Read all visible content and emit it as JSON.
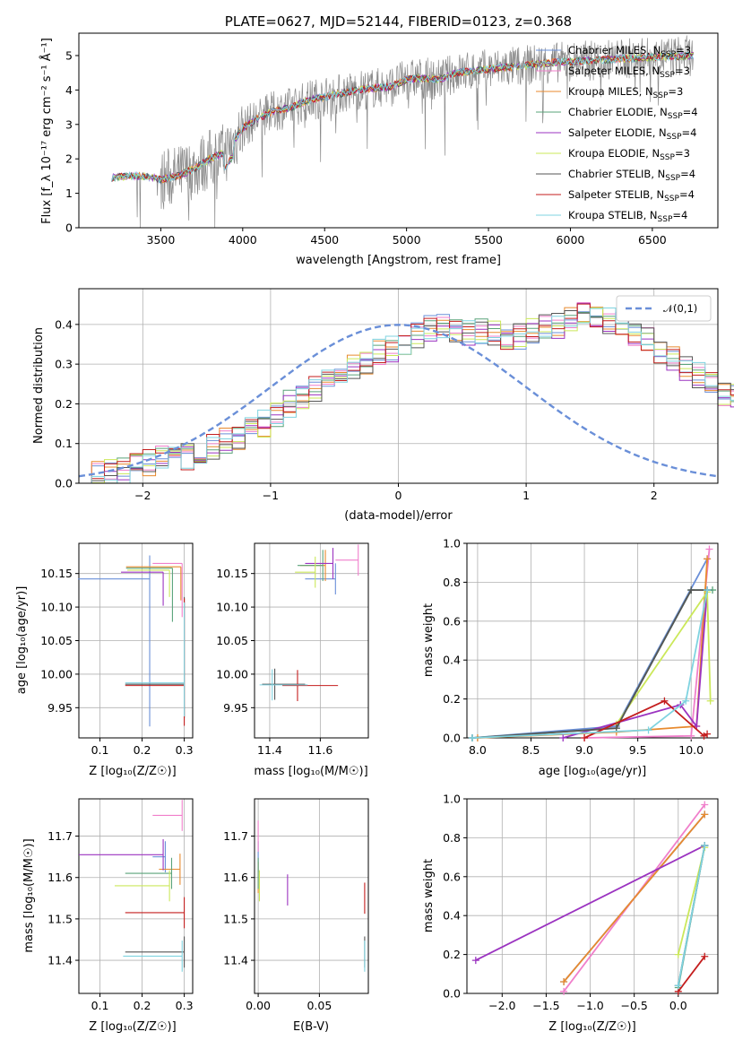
{
  "palette": [
    "#6a8fd8",
    "#f07fcb",
    "#e88a2e",
    "#5aa37a",
    "#9b33c0",
    "#cbe85a",
    "#555555",
    "#c41e1e",
    "#7fd3e0"
  ],
  "top": {
    "title": "PLATE=0627, MJD=52144, FIBERID=0123, z=0.368",
    "xlabel": "wavelength [Angstrom, rest frame]",
    "ylabel": "Flux [f_λ 10⁻¹⁷ erg cm⁻² s⁻¹ Å⁻¹]",
    "xticks": [
      "3500",
      "4000",
      "4500",
      "5000",
      "5500",
      "6000",
      "6500"
    ],
    "yticks": [
      "0",
      "1",
      "2",
      "3",
      "4",
      "5"
    ],
    "legend": [
      "Chabrier MILES, N_SSP=3",
      "Salpeter MILES, N_SSP=3",
      "Kroupa MILES, N_SSP=3",
      "Chabrier ELODIE, N_SSP=4",
      "Salpeter ELODIE, N_SSP=4",
      "Kroupa ELODIE, N_SSP=3",
      "Chabrier STELIB, N_SSP=4",
      "Salpeter STELIB, N_SSP=4",
      "Kroupa STELIB, N_SSP=4"
    ]
  },
  "hist": {
    "xlabel": "(data-model)/error",
    "ylabel": "Normed distribution",
    "xticks": [
      "−2",
      "−1",
      "0",
      "1",
      "2"
    ],
    "yticks": [
      "0.0",
      "0.1",
      "0.2",
      "0.3",
      "0.4"
    ],
    "legend": "𝒩(0,1)"
  },
  "p3": {
    "xlabel": "Z [log₁₀(Z/Z☉)]",
    "ylabel": "age  [log₁₀(age/yr)]",
    "xticks": [
      "0.1",
      "0.2",
      "0.3"
    ],
    "yticks": [
      "9.95",
      "10.00",
      "10.05",
      "10.10",
      "10.15"
    ]
  },
  "p4": {
    "xlabel": "mass [log₁₀(M/M☉)]",
    "xticks": [
      "11.4",
      "11.6"
    ],
    "yticks": [
      "9.95",
      "10.00",
      "10.05",
      "10.10",
      "10.15"
    ]
  },
  "p5": {
    "xlabel": "age  [log₁₀(age/yr)]",
    "ylabel": "mass weight",
    "xticks": [
      "8.0",
      "8.5",
      "9.0",
      "9.5",
      "10.0"
    ],
    "yticks": [
      "0.0",
      "0.2",
      "0.4",
      "0.6",
      "0.8",
      "1.0"
    ]
  },
  "p6": {
    "xlabel": "Z [log₁₀(Z/Z☉)]",
    "ylabel": "mass [log₁₀(M/M☉)]",
    "xticks": [
      "0.1",
      "0.2",
      "0.3"
    ],
    "yticks": [
      "11.4",
      "11.5",
      "11.6",
      "11.7"
    ]
  },
  "p7": {
    "xlabel": "E(B-V)",
    "xticks": [
      "0.00",
      "0.05"
    ],
    "yticks": [
      "11.4",
      "11.5",
      "11.6",
      "11.7"
    ]
  },
  "p8": {
    "xlabel": "Z [log₁₀(Z/Z☉)]",
    "ylabel": "mass weight",
    "xticks": [
      "−2.0",
      "−1.5",
      "−1.0",
      "−0.5",
      "0.0"
    ],
    "yticks": [
      "0.0",
      "0.2",
      "0.4",
      "0.6",
      "0.8",
      "1.0"
    ]
  },
  "chart_data": [
    {
      "type": "line",
      "title": "PLATE=0627, MJD=52144, FIBERID=0123, z=0.368",
      "xlabel": "wavelength [Angstrom, rest frame]",
      "ylabel": "Flux [f_λ 10⁻¹⁷ erg cm⁻² s⁻¹ Å⁻¹]",
      "xlim": [
        3000,
        6900
      ],
      "ylim": [
        0,
        5.65
      ],
      "legend_position": "right",
      "continuum_x": [
        3200,
        3300,
        3400,
        3500,
        3600,
        3700,
        3800,
        3900,
        4000,
        4100,
        4200,
        4300,
        4400,
        4500,
        4700,
        4900,
        5000,
        5100,
        5200,
        5300,
        5500,
        5700,
        5900,
        6100,
        6300,
        6500,
        6750
      ],
      "continuum_y": [
        1.45,
        1.5,
        1.5,
        1.4,
        1.5,
        1.7,
        2.0,
        2.2,
        2.9,
        3.2,
        3.4,
        3.5,
        3.7,
        3.8,
        4.0,
        4.1,
        4.3,
        4.35,
        4.3,
        4.5,
        4.6,
        4.7,
        4.8,
        4.85,
        4.9,
        4.95,
        5.0
      ]
    },
    {
      "type": "bar",
      "xlabel": "(data-model)/error",
      "ylabel": "Normed distribution",
      "xlim": [
        -2.5,
        2.5
      ],
      "ylim": [
        0,
        0.49
      ],
      "grid": true,
      "bin_edges_start": -2.5,
      "bin_width": 0.1,
      "mean_histogram": [
        0.025,
        0.025,
        0.03,
        0.03,
        0.04,
        0.05,
        0.06,
        0.07,
        0.065,
        0.075,
        0.09,
        0.11,
        0.12,
        0.14,
        0.15,
        0.17,
        0.2,
        0.22,
        0.24,
        0.25,
        0.27,
        0.29,
        0.31,
        0.33,
        0.34,
        0.35,
        0.37,
        0.39,
        0.39,
        0.39,
        0.38,
        0.38,
        0.38,
        0.37,
        0.37,
        0.38,
        0.39,
        0.4,
        0.41,
        0.42,
        0.42,
        0.41,
        0.4,
        0.38,
        0.36,
        0.33,
        0.31,
        0.29,
        0.27,
        0.25,
        0.23,
        0.22,
        0.2,
        0.18,
        0.16,
        0.14,
        0.13,
        0.12,
        0.1,
        0.09,
        0.08,
        0.07,
        0.06,
        0.055,
        0.05,
        0.045,
        0.04,
        0.035,
        0.03,
        0.03
      ],
      "gaussian_label": "𝒩(0,1)"
    },
    {
      "type": "scatter",
      "xlabel": "Z [log₁₀(Z/Z☉)]",
      "ylabel": "age  [log₁₀(age/yr)]",
      "xlim": [
        0.05,
        0.32
      ],
      "ylim": [
        9.905,
        10.195
      ],
      "grid": true,
      "series": [
        {
          "x": 0.218,
          "y": 10.142,
          "xerr": [
            0.17,
            0.0
          ],
          "yerr": [
            0.22,
            0.035
          ]
        },
        {
          "x": 0.295,
          "y": 10.165,
          "xerr": [
            0.07,
            0.0
          ],
          "yerr": [
            0.08,
            0.0
          ]
        },
        {
          "x": 0.292,
          "y": 10.16,
          "xerr": [
            0.13,
            0.0
          ],
          "yerr": [
            0.05,
            0.0
          ]
        },
        {
          "x": 0.272,
          "y": 10.158,
          "xerr": [
            0.11,
            0.0
          ],
          "yerr": [
            0.08,
            0.0
          ]
        },
        {
          "x": 0.25,
          "y": 10.152,
          "xerr": [
            0.1,
            0.0
          ],
          "yerr": [
            0.05,
            0.0
          ]
        },
        {
          "x": 0.265,
          "y": 10.155,
          "xerr": [
            0.1,
            0.0
          ],
          "yerr": [
            0.04,
            0.0
          ]
        },
        {
          "x": 0.3,
          "y": 9.985,
          "xerr": [
            0.14,
            0.0
          ],
          "yerr": [
            0.05,
            0.13
          ]
        },
        {
          "x": 0.3,
          "y": 9.983,
          "xerr": [
            0.14,
            0.0
          ],
          "yerr": [
            0.06,
            0.13
          ]
        },
        {
          "x": 0.3,
          "y": 9.987,
          "xerr": [
            0.14,
            0.0
          ],
          "yerr": [
            0.05,
            0.12
          ]
        }
      ]
    },
    {
      "type": "scatter",
      "xlabel": "mass [log₁₀(M/M☉)]",
      "xlim": [
        11.34,
        11.79
      ],
      "ylim": [
        9.905,
        10.195
      ],
      "grid": true,
      "series": [
        {
          "x": 11.66,
          "y": 10.142,
          "xerr": [
            0.12,
            0.0
          ]
        },
        {
          "x": 11.75,
          "y": 10.17,
          "xerr": [
            0.09,
            0.0
          ]
        },
        {
          "x": 11.62,
          "y": 10.162,
          "xerr": [
            0.1,
            0.0
          ]
        },
        {
          "x": 11.61,
          "y": 10.162,
          "xerr": [
            0.1,
            0.0
          ]
        },
        {
          "x": 11.65,
          "y": 10.165,
          "xerr": [
            0.11,
            0.0
          ]
        },
        {
          "x": 11.58,
          "y": 10.152,
          "xerr": [
            0.08,
            0.0
          ]
        },
        {
          "x": 11.42,
          "y": 9.985,
          "xerr": [
            0.05,
            0.12
          ]
        },
        {
          "x": 11.51,
          "y": 9.983,
          "xerr": [
            0.06,
            0.16
          ]
        },
        {
          "x": 11.41,
          "y": 9.984,
          "xerr": [
            0.05,
            0.14
          ]
        }
      ]
    },
    {
      "type": "line",
      "xlabel": "age  [log₁₀(age/yr)]",
      "ylabel": "mass weight",
      "xlim": [
        7.9,
        10.25
      ],
      "ylim": [
        0,
        1
      ],
      "grid": true,
      "series": [
        {
          "x": [
            7.95,
            9.3,
            10.15
          ],
          "y": [
            0.0,
            0.06,
            0.92
          ]
        },
        {
          "x": [
            9.0,
            10.0,
            10.17
          ],
          "y": [
            0.0,
            0.01,
            0.97
          ]
        },
        {
          "x": [
            8.0,
            9.3,
            10.05,
            10.15
          ],
          "y": [
            0.0,
            0.03,
            0.06,
            0.92
          ]
        },
        {
          "x": [
            7.95,
            9.3,
            10.0,
            10.2
          ],
          "y": [
            0.0,
            0.05,
            0.76,
            0.76
          ]
        },
        {
          "x": [
            8.8,
            9.9,
            10.05,
            10.15
          ],
          "y": [
            0.0,
            0.17,
            0.06,
            0.76
          ]
        },
        {
          "x": [
            9.3,
            10.15,
            10.18
          ],
          "y": [
            0.07,
            0.75,
            0.19
          ]
        },
        {
          "x": [
            7.95,
            9.3,
            10.0,
            10.15
          ],
          "y": [
            0.0,
            0.05,
            0.76,
            0.76
          ]
        },
        {
          "x": [
            9.0,
            9.75,
            10.12,
            10.15
          ],
          "y": [
            0.0,
            0.19,
            0.01,
            0.02
          ]
        },
        {
          "x": [
            7.95,
            9.6,
            9.95,
            10.15
          ],
          "y": [
            0.0,
            0.04,
            0.19,
            0.76
          ]
        }
      ]
    },
    {
      "type": "scatter",
      "xlabel": "Z [log₁₀(Z/Z☉)]",
      "ylabel": "mass [log₁₀(M/M☉)]",
      "xlim": [
        0.05,
        0.32
      ],
      "ylim": [
        11.32,
        11.79
      ],
      "grid": true,
      "series": [
        {
          "x": 0.255,
          "y": 11.65,
          "xerr": [
            0.03,
            0.0
          ]
        },
        {
          "x": 0.295,
          "y": 11.75,
          "xerr": [
            0.07,
            0.0
          ]
        },
        {
          "x": 0.29,
          "y": 11.62,
          "xerr": [
            0.05,
            0.0
          ]
        },
        {
          "x": 0.27,
          "y": 11.61,
          "xerr": [
            0.11,
            0.0
          ]
        },
        {
          "x": 0.25,
          "y": 11.655,
          "xerr": [
            0.2,
            0.0
          ]
        },
        {
          "x": 0.265,
          "y": 11.58,
          "xerr": [
            0.13,
            0.0
          ]
        },
        {
          "x": 0.3,
          "y": 11.42,
          "xerr": [
            0.14,
            0.0
          ]
        },
        {
          "x": 0.3,
          "y": 11.515,
          "xerr": [
            0.14,
            0.0
          ]
        },
        {
          "x": 0.295,
          "y": 11.41,
          "xerr": [
            0.14,
            0.0
          ]
        }
      ]
    },
    {
      "type": "scatter",
      "xlabel": "E(B-V)",
      "xlim": [
        -0.003,
        0.09
      ],
      "ylim": [
        11.32,
        11.79
      ],
      "grid": true,
      "series": [
        {
          "x": 0.0,
          "y": 11.65
        },
        {
          "x": 0.0,
          "y": 11.7
        },
        {
          "x": 0.0,
          "y": 11.6
        },
        {
          "x": 0.0,
          "y": 11.61
        },
        {
          "x": 0.024,
          "y": 11.57
        },
        {
          "x": 0.001,
          "y": 11.58
        },
        {
          "x": 0.087,
          "y": 11.42
        },
        {
          "x": 0.087,
          "y": 11.55
        },
        {
          "x": 0.087,
          "y": 11.41
        }
      ]
    },
    {
      "type": "line",
      "xlabel": "Z [log₁₀(Z/Z☉)]",
      "ylabel": "mass weight",
      "xlim": [
        -2.4,
        0.45
      ],
      "ylim": [
        0,
        1
      ],
      "grid": true,
      "series": [
        {
          "x": [
            -1.3,
            0.3
          ],
          "y": [
            0.06,
            0.92
          ]
        },
        {
          "x": [
            -1.3,
            0.3
          ],
          "y": [
            0.01,
            0.97
          ]
        },
        {
          "x": [
            -1.3,
            0.3
          ],
          "y": [
            0.06,
            0.92
          ]
        },
        {
          "x": [
            0.0,
            0.3
          ],
          "y": [
            0.03,
            0.76
          ]
        },
        {
          "x": [
            -2.3,
            0.3
          ],
          "y": [
            0.17,
            0.76
          ]
        },
        {
          "x": [
            0.0,
            0.3
          ],
          "y": [
            0.2,
            0.75
          ]
        },
        {
          "x": [
            0.0,
            0.3
          ],
          "y": [
            0.04,
            0.76
          ]
        },
        {
          "x": [
            0.0,
            0.3
          ],
          "y": [
            0.01,
            0.19
          ]
        },
        {
          "x": [
            0.0,
            0.3
          ],
          "y": [
            0.04,
            0.76
          ]
        }
      ]
    }
  ]
}
